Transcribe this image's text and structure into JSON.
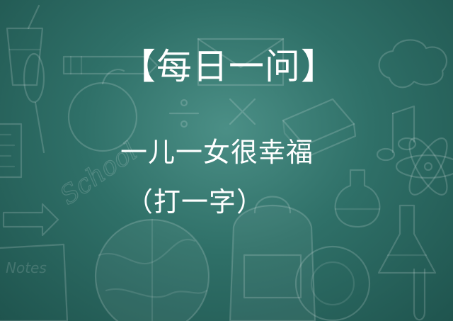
{
  "post": {
    "title": "【每日一问】",
    "riddle": "一儿一女很幸福",
    "hint": "（打一字）"
  },
  "decorations": {
    "chalk_school_text": "School",
    "chalk_notes_text": "Notes"
  },
  "colors": {
    "chalkboard": "#2f7068",
    "chalk_text": "#ffffff"
  }
}
